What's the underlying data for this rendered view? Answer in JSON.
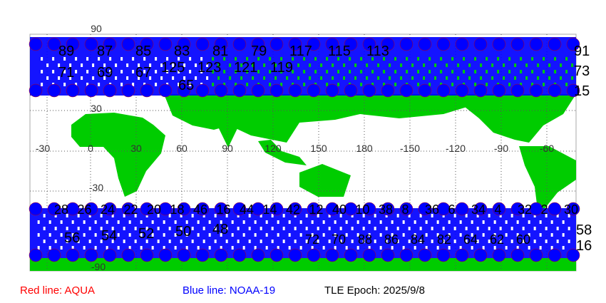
{
  "map": {
    "lon_labels": [
      "-30",
      "0",
      "30",
      "60",
      "90",
      "120",
      "150",
      "180",
      "-150",
      "-120",
      "-90",
      "-60"
    ],
    "lat_labels": [
      "90",
      "30",
      "-30",
      "-90"
    ],
    "top_orbit_labels_row1": [
      "89",
      "87",
      "85",
      "83",
      "81",
      "79",
      "117",
      "115",
      "113"
    ],
    "top_orbit_labels_row2": [
      "71",
      "69",
      "67",
      "125",
      "123",
      "121",
      "119",
      "65"
    ],
    "top_right_labels": [
      "91",
      "73",
      "15"
    ],
    "bottom_orbit_labels_row1": [
      "28",
      "26",
      "24",
      "22",
      "20",
      "18",
      "46",
      "16",
      "44",
      "14",
      "42",
      "12",
      "40",
      "10",
      "38",
      "8",
      "36",
      "6",
      "34",
      "4",
      "32",
      "2",
      "30"
    ],
    "bottom_orbit_labels_row2": [
      "56",
      "54",
      "52",
      "50",
      "48",
      "72",
      "70",
      "88",
      "86",
      "84",
      "82",
      "64",
      "62",
      "60"
    ],
    "bottom_right_labels": [
      "58",
      "16"
    ],
    "colors": {
      "land": "#00cc00",
      "ocean": "#ffffff",
      "aqua_track": "#ff0000",
      "noaa_track": "#0000ff",
      "grid": "#555555"
    }
  },
  "legend": {
    "red_line": "Red line: AQUA",
    "blue_line": "Blue line: NOAA-19",
    "epoch": "TLE Epoch: 2025/9/8"
  }
}
